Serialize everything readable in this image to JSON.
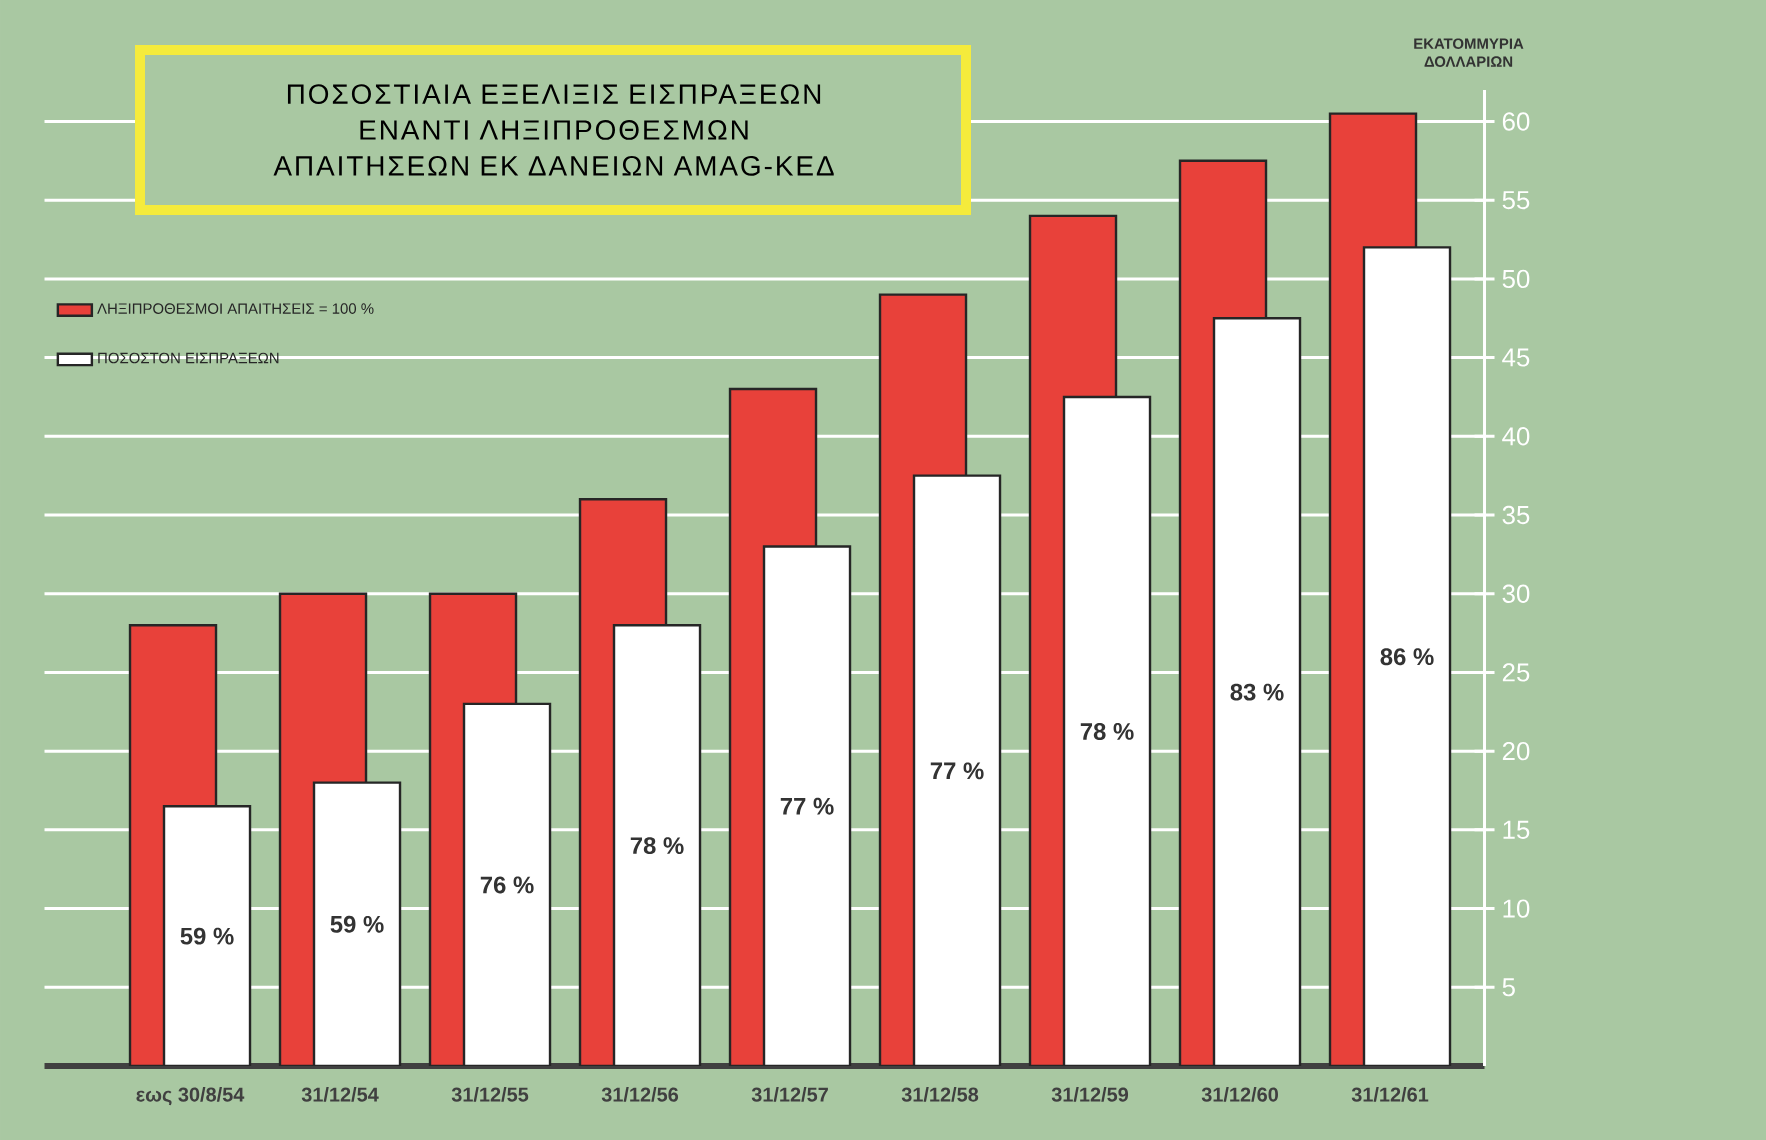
{
  "chart_data": {
    "type": "bar",
    "title": "ΠΟΣΟΣΤΙΑΙΑ ΕΞΕΛΙΞΙΣ ΕΙΣΠΡΑΞΕΩΝ ΕΝΑΝΤΙ ΛΗΞΙΠΡΟΘΕΣΜΩΝ ΑΠΑΙΤΗΣΕΩΝ ΕΚ ΔΑΝΕΙΩΝ ΑΜΑG-ΚΕΔ",
    "ylabel": "ΕΚΑΤΟΜΜΥΡΙΑ ΔΟΛΛΑΡΙΩΝ",
    "categories": [
      "εως 30/8/54",
      "31/12/54",
      "31/12/55",
      "31/12/56",
      "31/12/57",
      "31/12/58",
      "31/12/59",
      "31/12/60",
      "31/12/61"
    ],
    "series": [
      {
        "name": "ΛΗΞΙΠΡΟΘΕΣΜΟΙ ΑΠΑΙΤΗΣΕΙΣ = 100 %",
        "color": "#e8413a",
        "values": [
          28,
          30,
          30,
          36,
          43,
          49,
          54,
          57.5,
          60.5
        ]
      },
      {
        "name": "ΠΟΣΟΣΤΟΝ ΕΙΣΠΡΑΞΕΩΝ",
        "color": "#ffffff",
        "values": [
          16.5,
          18,
          23,
          28,
          33,
          37.5,
          42.5,
          47.5,
          52
        ]
      }
    ],
    "annotations": [
      "59 %",
      "59 %",
      "76 %",
      "78 %",
      "77 %",
      "77 %",
      "78 %",
      "83 %",
      "86 %"
    ],
    "ylim": [
      0,
      62
    ],
    "yticks": [
      5,
      10,
      15,
      20,
      25,
      30,
      35,
      40,
      45,
      50,
      55,
      60
    ],
    "grid": "y",
    "legend": "top left"
  }
}
